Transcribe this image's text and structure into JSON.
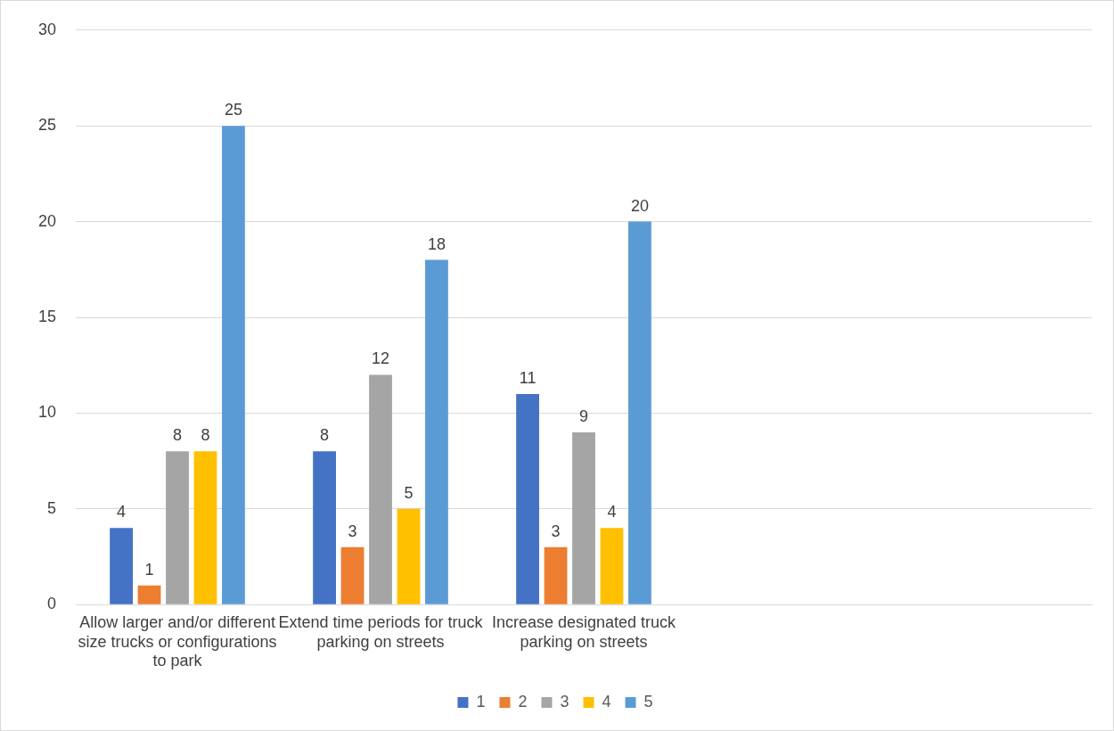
{
  "chart_data": {
    "type": "bar",
    "categories": [
      "Allow larger and/or different size trucks or configurations to park",
      "Extend time periods for truck parking on streets",
      "Increase designated truck parking on streets",
      null,
      null
    ],
    "series": [
      {
        "name": "1",
        "color": "#4472c4",
        "values": [
          4,
          8,
          11,
          null,
          null
        ]
      },
      {
        "name": "2",
        "color": "#ed7d31",
        "values": [
          1,
          3,
          3,
          null,
          null
        ]
      },
      {
        "name": "3",
        "color": "#a5a5a5",
        "values": [
          8,
          12,
          9,
          null,
          null
        ]
      },
      {
        "name": "4",
        "color": "#ffc000",
        "values": [
          8,
          5,
          4,
          null,
          null
        ]
      },
      {
        "name": "5",
        "color": "#5b9bd5",
        "values": [
          25,
          18,
          20,
          null,
          null
        ]
      }
    ],
    "ylim": [
      0,
      30
    ],
    "yticks": [
      0,
      5,
      10,
      15,
      20,
      25,
      30
    ],
    "grid": "y",
    "legend": "bottom",
    "data_labels": true
  }
}
